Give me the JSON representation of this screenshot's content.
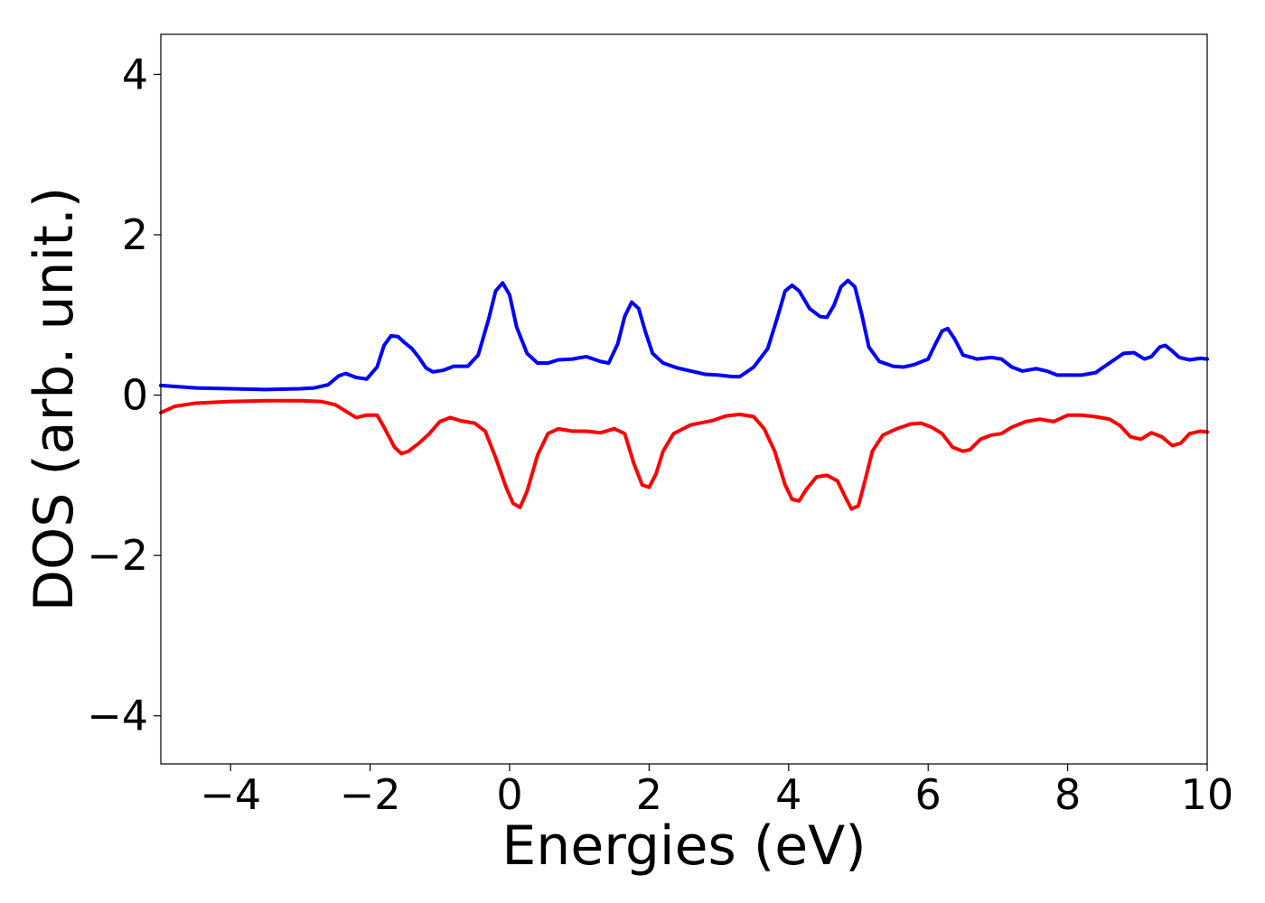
{
  "chart_data": {
    "type": "line",
    "title": "",
    "xlabel": "Energies (eV)",
    "ylabel": "DOS (arb. unit.)",
    "xlim": [
      -5,
      10
    ],
    "ylim": [
      -4.6,
      4.5
    ],
    "xticks": [
      -4,
      -2,
      0,
      2,
      4,
      6,
      8,
      10
    ],
    "yticks": [
      -4,
      -2,
      0,
      2,
      4
    ],
    "xtick_labels": [
      "−4",
      "−2",
      "0",
      "2",
      "4",
      "6",
      "8",
      "10"
    ],
    "ytick_labels": [
      "−4",
      "−2",
      "0",
      "2",
      "4"
    ],
    "grid": false,
    "legend": false,
    "series": [
      {
        "color": "#0000ff",
        "points": [
          [
            -5.0,
            0.12
          ],
          [
            -4.5,
            0.09
          ],
          [
            -4.0,
            0.08
          ],
          [
            -3.5,
            0.07
          ],
          [
            -3.0,
            0.08
          ],
          [
            -2.8,
            0.09
          ],
          [
            -2.6,
            0.13
          ],
          [
            -2.45,
            0.24
          ],
          [
            -2.35,
            0.27
          ],
          [
            -2.2,
            0.22
          ],
          [
            -2.05,
            0.2
          ],
          [
            -1.9,
            0.35
          ],
          [
            -1.8,
            0.62
          ],
          [
            -1.7,
            0.74
          ],
          [
            -1.6,
            0.73
          ],
          [
            -1.5,
            0.65
          ],
          [
            -1.4,
            0.58
          ],
          [
            -1.3,
            0.47
          ],
          [
            -1.2,
            0.34
          ],
          [
            -1.1,
            0.29
          ],
          [
            -0.95,
            0.31
          ],
          [
            -0.8,
            0.36
          ],
          [
            -0.6,
            0.36
          ],
          [
            -0.45,
            0.5
          ],
          [
            -0.3,
            0.95
          ],
          [
            -0.2,
            1.3
          ],
          [
            -0.1,
            1.4
          ],
          [
            0.0,
            1.25
          ],
          [
            0.1,
            0.85
          ],
          [
            0.25,
            0.52
          ],
          [
            0.4,
            0.4
          ],
          [
            0.55,
            0.4
          ],
          [
            0.7,
            0.44
          ],
          [
            0.9,
            0.45
          ],
          [
            1.1,
            0.48
          ],
          [
            1.3,
            0.42
          ],
          [
            1.42,
            0.4
          ],
          [
            1.55,
            0.64
          ],
          [
            1.65,
            0.98
          ],
          [
            1.75,
            1.16
          ],
          [
            1.85,
            1.08
          ],
          [
            1.95,
            0.78
          ],
          [
            2.05,
            0.52
          ],
          [
            2.2,
            0.4
          ],
          [
            2.4,
            0.34
          ],
          [
            2.6,
            0.3
          ],
          [
            2.8,
            0.26
          ],
          [
            3.0,
            0.25
          ],
          [
            3.2,
            0.23
          ],
          [
            3.3,
            0.23
          ],
          [
            3.5,
            0.35
          ],
          [
            3.7,
            0.58
          ],
          [
            3.85,
            1.0
          ],
          [
            3.95,
            1.3
          ],
          [
            4.05,
            1.37
          ],
          [
            4.15,
            1.3
          ],
          [
            4.3,
            1.08
          ],
          [
            4.45,
            0.98
          ],
          [
            4.55,
            0.97
          ],
          [
            4.65,
            1.12
          ],
          [
            4.75,
            1.35
          ],
          [
            4.85,
            1.43
          ],
          [
            4.95,
            1.35
          ],
          [
            5.05,
            1.0
          ],
          [
            5.15,
            0.6
          ],
          [
            5.3,
            0.42
          ],
          [
            5.5,
            0.36
          ],
          [
            5.65,
            0.35
          ],
          [
            5.8,
            0.38
          ],
          [
            6.0,
            0.45
          ],
          [
            6.1,
            0.63
          ],
          [
            6.2,
            0.8
          ],
          [
            6.28,
            0.83
          ],
          [
            6.38,
            0.7
          ],
          [
            6.5,
            0.5
          ],
          [
            6.7,
            0.45
          ],
          [
            6.9,
            0.47
          ],
          [
            7.05,
            0.45
          ],
          [
            7.2,
            0.35
          ],
          [
            7.35,
            0.3
          ],
          [
            7.55,
            0.33
          ],
          [
            7.7,
            0.3
          ],
          [
            7.85,
            0.25
          ],
          [
            8.0,
            0.25
          ],
          [
            8.2,
            0.25
          ],
          [
            8.4,
            0.28
          ],
          [
            8.6,
            0.4
          ],
          [
            8.8,
            0.52
          ],
          [
            8.95,
            0.53
          ],
          [
            9.1,
            0.45
          ],
          [
            9.2,
            0.48
          ],
          [
            9.32,
            0.6
          ],
          [
            9.4,
            0.62
          ],
          [
            9.5,
            0.55
          ],
          [
            9.6,
            0.47
          ],
          [
            9.75,
            0.44
          ],
          [
            9.9,
            0.46
          ],
          [
            10.0,
            0.45
          ]
        ]
      },
      {
        "color": "#ff0000",
        "points": [
          [
            -5.0,
            -0.22
          ],
          [
            -4.8,
            -0.14
          ],
          [
            -4.5,
            -0.1
          ],
          [
            -4.0,
            -0.08
          ],
          [
            -3.5,
            -0.07
          ],
          [
            -3.0,
            -0.07
          ],
          [
            -2.7,
            -0.08
          ],
          [
            -2.5,
            -0.12
          ],
          [
            -2.35,
            -0.2
          ],
          [
            -2.2,
            -0.28
          ],
          [
            -2.05,
            -0.25
          ],
          [
            -1.9,
            -0.25
          ],
          [
            -1.8,
            -0.4
          ],
          [
            -1.65,
            -0.65
          ],
          [
            -1.55,
            -0.73
          ],
          [
            -1.45,
            -0.7
          ],
          [
            -1.3,
            -0.6
          ],
          [
            -1.15,
            -0.48
          ],
          [
            -1.0,
            -0.33
          ],
          [
            -0.85,
            -0.28
          ],
          [
            -0.7,
            -0.32
          ],
          [
            -0.5,
            -0.35
          ],
          [
            -0.35,
            -0.45
          ],
          [
            -0.2,
            -0.78
          ],
          [
            -0.05,
            -1.15
          ],
          [
            0.05,
            -1.35
          ],
          [
            0.15,
            -1.4
          ],
          [
            0.25,
            -1.2
          ],
          [
            0.4,
            -0.75
          ],
          [
            0.55,
            -0.48
          ],
          [
            0.7,
            -0.42
          ],
          [
            0.9,
            -0.45
          ],
          [
            1.1,
            -0.45
          ],
          [
            1.3,
            -0.47
          ],
          [
            1.5,
            -0.42
          ],
          [
            1.65,
            -0.48
          ],
          [
            1.78,
            -0.85
          ],
          [
            1.9,
            -1.12
          ],
          [
            2.0,
            -1.15
          ],
          [
            2.1,
            -0.98
          ],
          [
            2.2,
            -0.7
          ],
          [
            2.35,
            -0.48
          ],
          [
            2.6,
            -0.37
          ],
          [
            2.9,
            -0.32
          ],
          [
            3.1,
            -0.26
          ],
          [
            3.3,
            -0.24
          ],
          [
            3.5,
            -0.27
          ],
          [
            3.65,
            -0.42
          ],
          [
            3.8,
            -0.7
          ],
          [
            3.95,
            -1.12
          ],
          [
            4.05,
            -1.3
          ],
          [
            4.15,
            -1.32
          ],
          [
            4.25,
            -1.18
          ],
          [
            4.4,
            -1.02
          ],
          [
            4.55,
            -1.0
          ],
          [
            4.7,
            -1.07
          ],
          [
            4.8,
            -1.25
          ],
          [
            4.9,
            -1.42
          ],
          [
            5.0,
            -1.38
          ],
          [
            5.1,
            -1.05
          ],
          [
            5.2,
            -0.7
          ],
          [
            5.35,
            -0.5
          ],
          [
            5.55,
            -0.42
          ],
          [
            5.75,
            -0.36
          ],
          [
            5.9,
            -0.35
          ],
          [
            6.05,
            -0.4
          ],
          [
            6.2,
            -0.48
          ],
          [
            6.35,
            -0.65
          ],
          [
            6.5,
            -0.7
          ],
          [
            6.6,
            -0.68
          ],
          [
            6.75,
            -0.55
          ],
          [
            6.9,
            -0.5
          ],
          [
            7.05,
            -0.48
          ],
          [
            7.2,
            -0.4
          ],
          [
            7.4,
            -0.33
          ],
          [
            7.6,
            -0.3
          ],
          [
            7.8,
            -0.33
          ],
          [
            8.0,
            -0.25
          ],
          [
            8.2,
            -0.25
          ],
          [
            8.4,
            -0.27
          ],
          [
            8.6,
            -0.3
          ],
          [
            8.75,
            -0.38
          ],
          [
            8.9,
            -0.52
          ],
          [
            9.05,
            -0.55
          ],
          [
            9.2,
            -0.47
          ],
          [
            9.35,
            -0.52
          ],
          [
            9.5,
            -0.63
          ],
          [
            9.62,
            -0.6
          ],
          [
            9.75,
            -0.48
          ],
          [
            9.9,
            -0.45
          ],
          [
            10.0,
            -0.46
          ]
        ]
      }
    ]
  }
}
